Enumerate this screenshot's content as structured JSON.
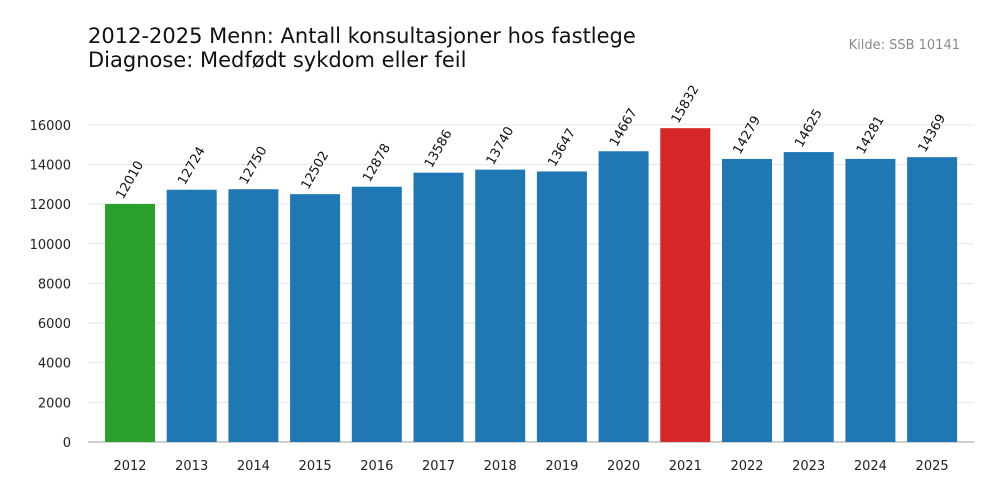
{
  "chart_data": {
    "type": "bar",
    "title_line1": "2012-2025 Menn: Antall konsultasjoner hos fastlege",
    "title_line2": "Diagnose: Medfødt sykdom eller feil",
    "source": "Kilde: SSB 10141",
    "categories": [
      "2012",
      "2013",
      "2014",
      "2015",
      "2016",
      "2017",
      "2018",
      "2019",
      "2020",
      "2021",
      "2022",
      "2023",
      "2024",
      "2025"
    ],
    "values": [
      12010,
      12724,
      12750,
      12502,
      12878,
      13586,
      13740,
      13647,
      14667,
      15832,
      14279,
      14625,
      14281,
      14369
    ],
    "ylim": [
      0,
      17000
    ],
    "yticks": [
      0,
      2000,
      4000,
      6000,
      8000,
      10000,
      12000,
      14000,
      16000
    ],
    "xlabel": "",
    "ylabel": "",
    "grid": true,
    "colors": {
      "default": "#1f77b4",
      "min": "#2ca02c",
      "max": "#d62728",
      "grid": "#e6e6e6",
      "axis": "#d0d0d0"
    }
  }
}
